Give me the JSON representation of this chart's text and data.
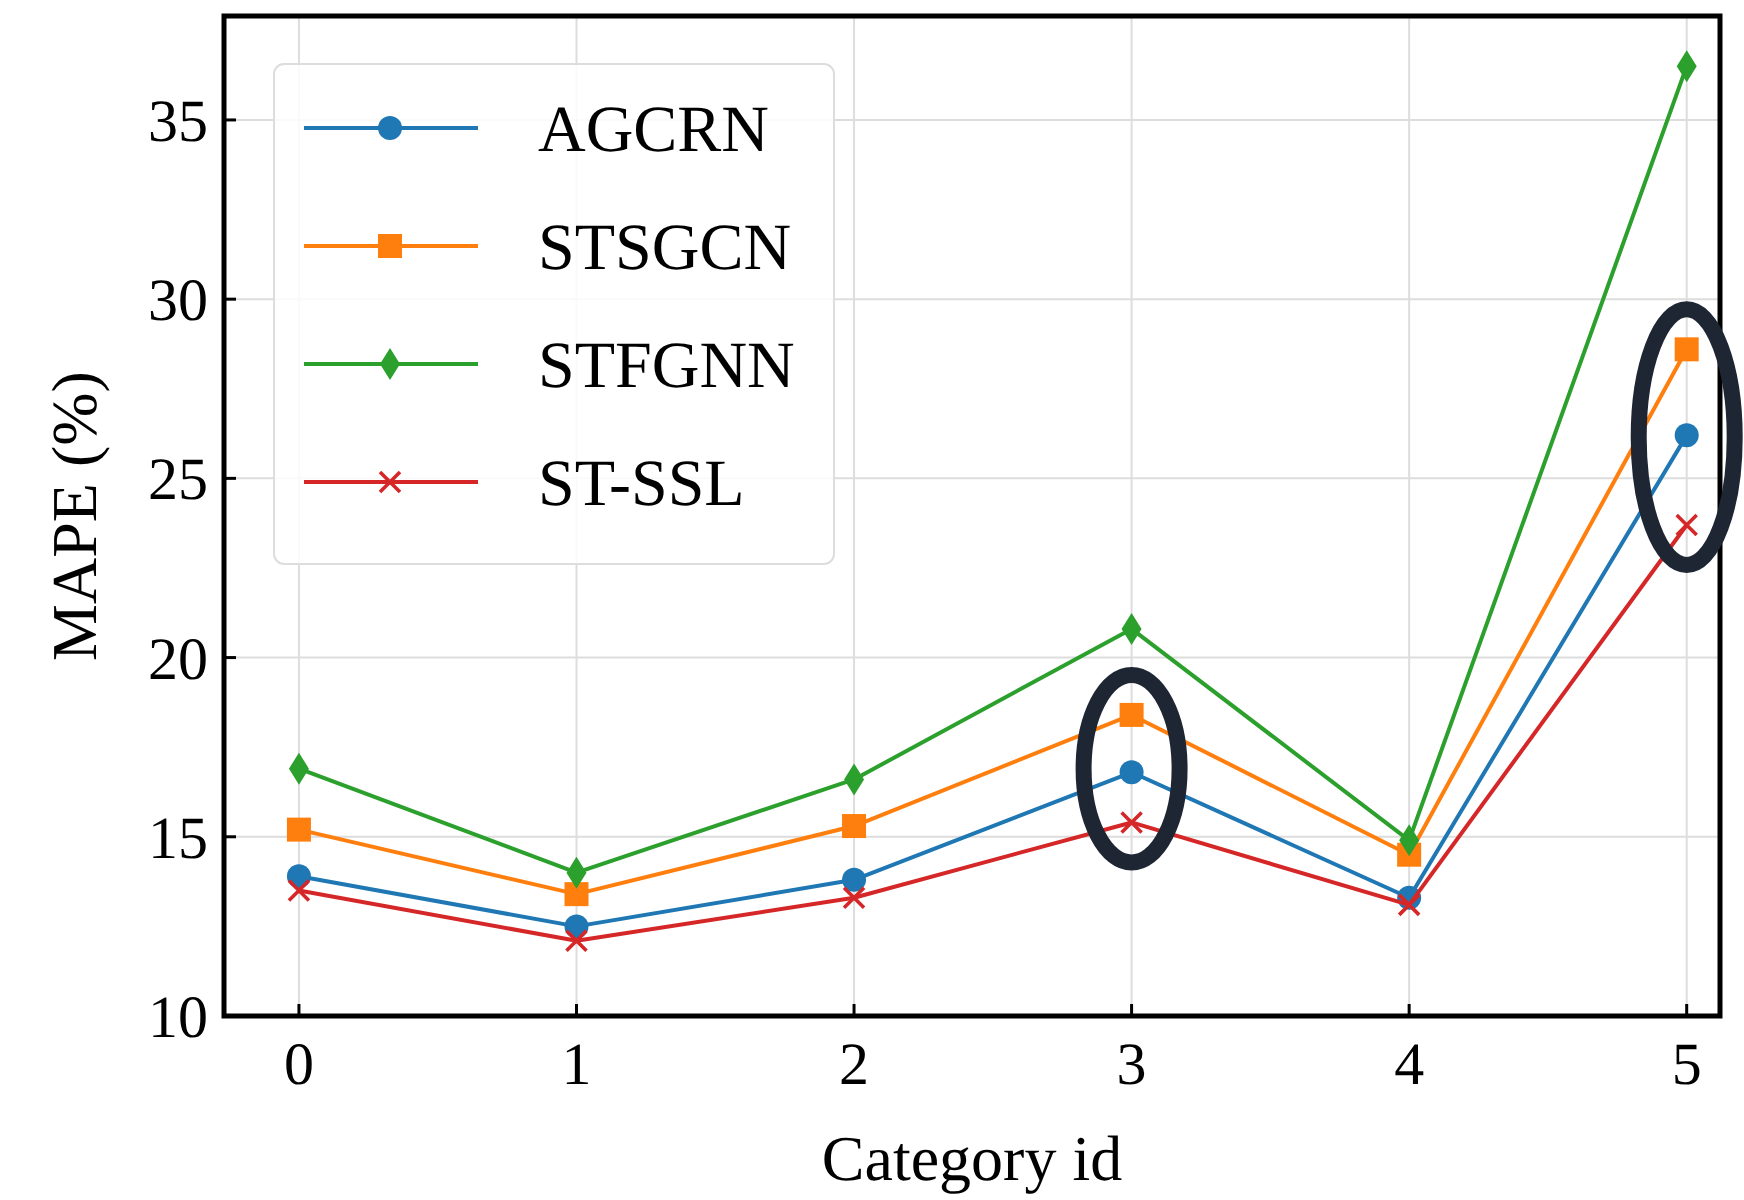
{
  "chart_data": {
    "type": "line",
    "xlabel": "Category id",
    "ylabel": "MAPE (%)",
    "x": [
      0,
      1,
      2,
      3,
      4,
      5
    ],
    "series": [
      {
        "name": "AGCRN",
        "color": "#1f77b4",
        "marker": "circle",
        "values": [
          13.9,
          12.5,
          13.8,
          16.8,
          13.3,
          26.2
        ]
      },
      {
        "name": "STSGCN",
        "color": "#ff7f0e",
        "marker": "square",
        "values": [
          15.2,
          13.4,
          15.3,
          18.4,
          14.5,
          28.6
        ]
      },
      {
        "name": "STFGNN",
        "color": "#2ca02c",
        "marker": "diamond",
        "values": [
          16.9,
          14.0,
          16.6,
          20.8,
          14.9,
          36.5
        ]
      },
      {
        "name": "ST-SSL",
        "color": "#d62728",
        "marker": "cross",
        "values": [
          13.5,
          12.1,
          13.3,
          15.4,
          13.1,
          23.7
        ]
      }
    ],
    "xlim": [
      -0.27,
      5.12
    ],
    "xticks": [
      0,
      1,
      2,
      3,
      4,
      5
    ],
    "ylim": [
      10,
      37.9
    ],
    "yticks": [
      10,
      15,
      20,
      25,
      30,
      35
    ],
    "grid": true,
    "legend": "top left",
    "line_style": "solid"
  }
}
